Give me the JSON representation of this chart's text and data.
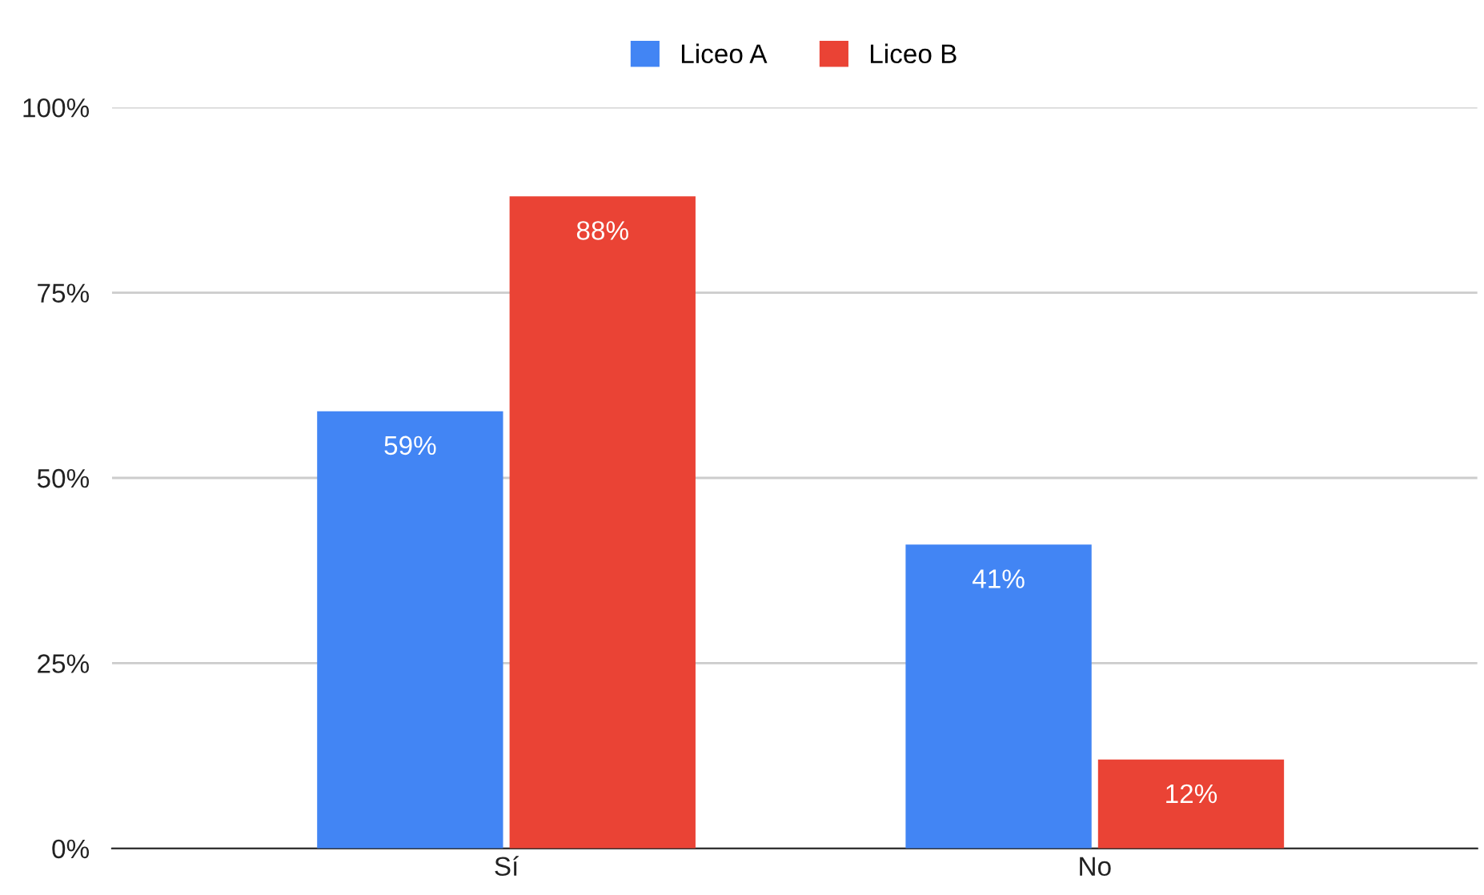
{
  "chart_data": {
    "type": "bar",
    "categories": [
      "Sí",
      "No"
    ],
    "series": [
      {
        "name": "Liceo A",
        "color": "#4285f4",
        "values": [
          59,
          41
        ],
        "value_labels": [
          "59%",
          "41%"
        ]
      },
      {
        "name": "Liceo B",
        "color": "#ea4335",
        "values": [
          88,
          12
        ],
        "value_labels": [
          "88%",
          "12%"
        ]
      }
    ],
    "ylim": [
      0,
      100
    ],
    "yticks": [
      {
        "value": 0,
        "label": "0%"
      },
      {
        "value": 25,
        "label": "25%"
      },
      {
        "value": 50,
        "label": "50%"
      },
      {
        "value": 75,
        "label": "75%"
      },
      {
        "value": 100,
        "label": "100%"
      }
    ],
    "grid": "y",
    "legend": "top"
  }
}
